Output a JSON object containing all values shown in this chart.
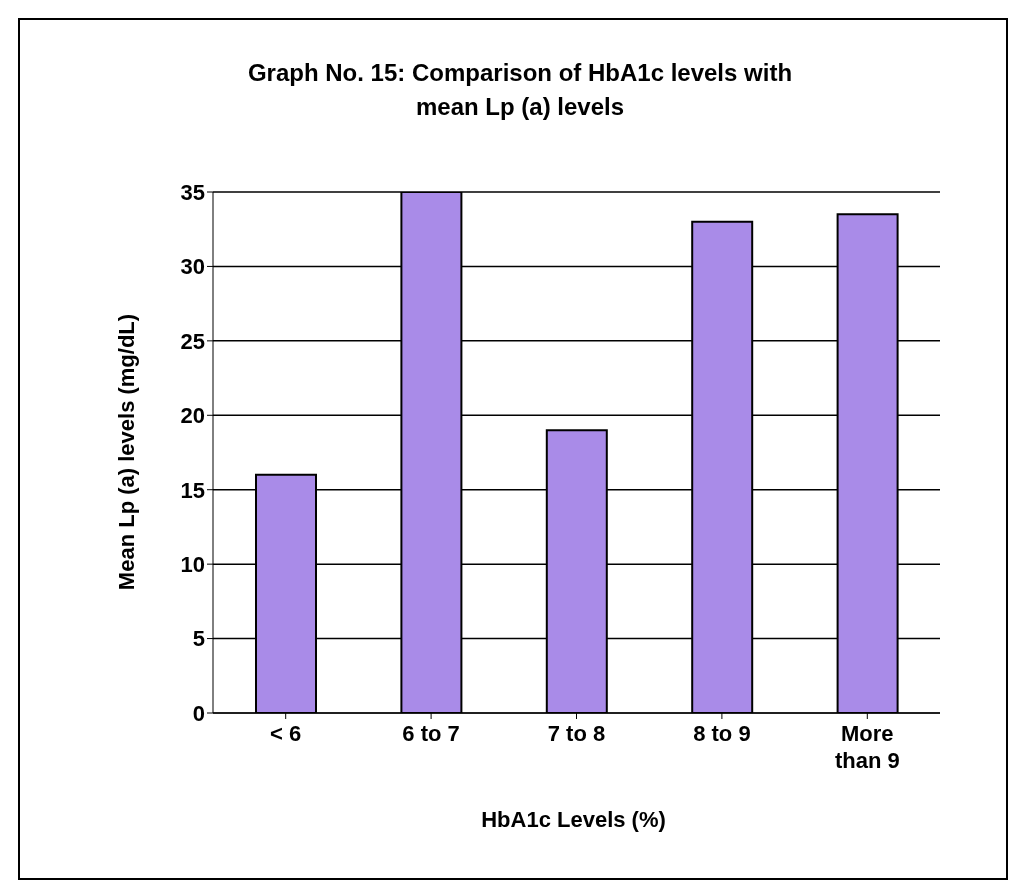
{
  "chart_data": {
    "type": "bar",
    "title": "Graph No. 15: Comparison of HbA1c levels with mean Lp (a) levels",
    "xlabel": "HbA1c Levels (%)",
    "ylabel": "Mean Lp (a) levels (mg/dL)",
    "categories": [
      "< 6",
      "6 to 7",
      "7 to 8",
      "8 to 9",
      "More than 9"
    ],
    "values": [
      16,
      35,
      19,
      33,
      33.5
    ],
    "color": "#a98be8",
    "ylim": [
      0,
      35
    ],
    "yticks": [
      0,
      5,
      10,
      15,
      20,
      25,
      30,
      35
    ],
    "grid": "y"
  }
}
